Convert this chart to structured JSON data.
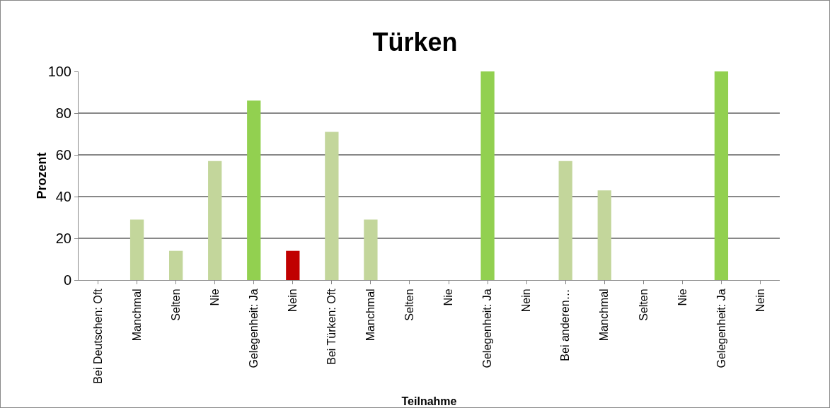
{
  "chart_data": {
    "type": "bar",
    "title": "Türken",
    "xlabel": "Teilnahme",
    "ylabel": "Prozent",
    "categories": [
      "Bei Deutschen: Oft",
      "Manchmal",
      "Selten",
      "Nie",
      "Gelegenheit: Ja",
      "Nein",
      "Bei Türken: Oft",
      "Manchmal",
      "Selten",
      "Nie",
      "Gelegenheit: Ja",
      "Nein",
      "Bei anderen…",
      "Manchmal",
      "Selten",
      "Nie",
      "Gelegenheit: Ja",
      "Nein"
    ],
    "values": [
      0,
      29,
      14,
      57,
      86,
      14,
      71,
      29,
      0,
      0,
      100,
      0,
      57,
      43,
      0,
      0,
      100,
      0
    ],
    "colors": [
      "#c3d69b",
      "#c3d69b",
      "#c3d69b",
      "#c3d69b",
      "#92d050",
      "#c00000",
      "#c3d69b",
      "#c3d69b",
      "#c3d69b",
      "#c3d69b",
      "#92d050",
      "#c00000",
      "#c3d69b",
      "#c3d69b",
      "#c3d69b",
      "#c3d69b",
      "#92d050",
      "#c00000"
    ],
    "ylim": [
      0,
      100
    ],
    "yticks": [
      0,
      20,
      40,
      60,
      80,
      100
    ],
    "grid": "y"
  }
}
